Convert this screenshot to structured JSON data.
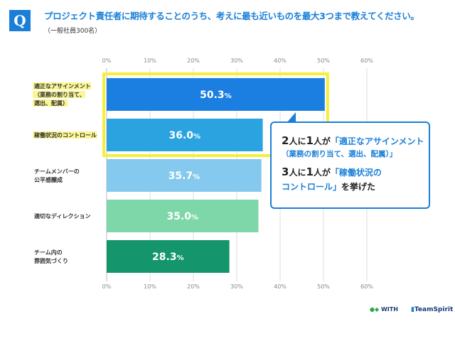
{
  "header": {
    "badge": "Q",
    "title": "プロジェクト責任者に期待することのうち、考えに最も近いものを最大3つまで教えてください。",
    "subtitle": "（一般社員300名）"
  },
  "chart_data": {
    "type": "bar",
    "orientation": "horizontal",
    "categories": [
      [
        "適正なアサインメント",
        "（業務の割り当て、",
        "選出、配属）"
      ],
      [
        "稼働状況のコントロール"
      ],
      [
        "チームメンバーの",
        "公平感醸成"
      ],
      [
        "適切なディレクション"
      ],
      [
        "チーム内の",
        "雰囲気づくり"
      ]
    ],
    "values": [
      50.3,
      36.0,
      35.7,
      35.0,
      28.3
    ],
    "value_labels": [
      "50.3",
      "36.0",
      "35.7",
      "35.0",
      "28.3"
    ],
    "unit": "%",
    "colors": [
      "#1a7fe0",
      "#2aa3e0",
      "#86c9ee",
      "#7ed7a8",
      "#14956b"
    ],
    "highlight_color": "#f5ee3a",
    "highlight_indices": [
      0,
      1
    ],
    "xlim": [
      0,
      60
    ],
    "xticks": [
      "0%",
      "10%",
      "20%",
      "30%",
      "40%",
      "50%",
      "60%"
    ],
    "grid": true
  },
  "callout": {
    "line1": {
      "n1": "2",
      "p1": "人に",
      "n2": "1",
      "p2": "人が",
      "q": "「適正なアサインメント"
    },
    "line2": "（業務の割り当て、選出、配属）」",
    "line3": {
      "n1": "3",
      "p1": "人に",
      "n2": "1",
      "p2": "人が",
      "q": "「稼働状況の"
    },
    "line4a": "コントロール」",
    "line4b": "を挙げた"
  },
  "logos": {
    "with": "WITH",
    "teamspirit": "TeamSpirit"
  }
}
